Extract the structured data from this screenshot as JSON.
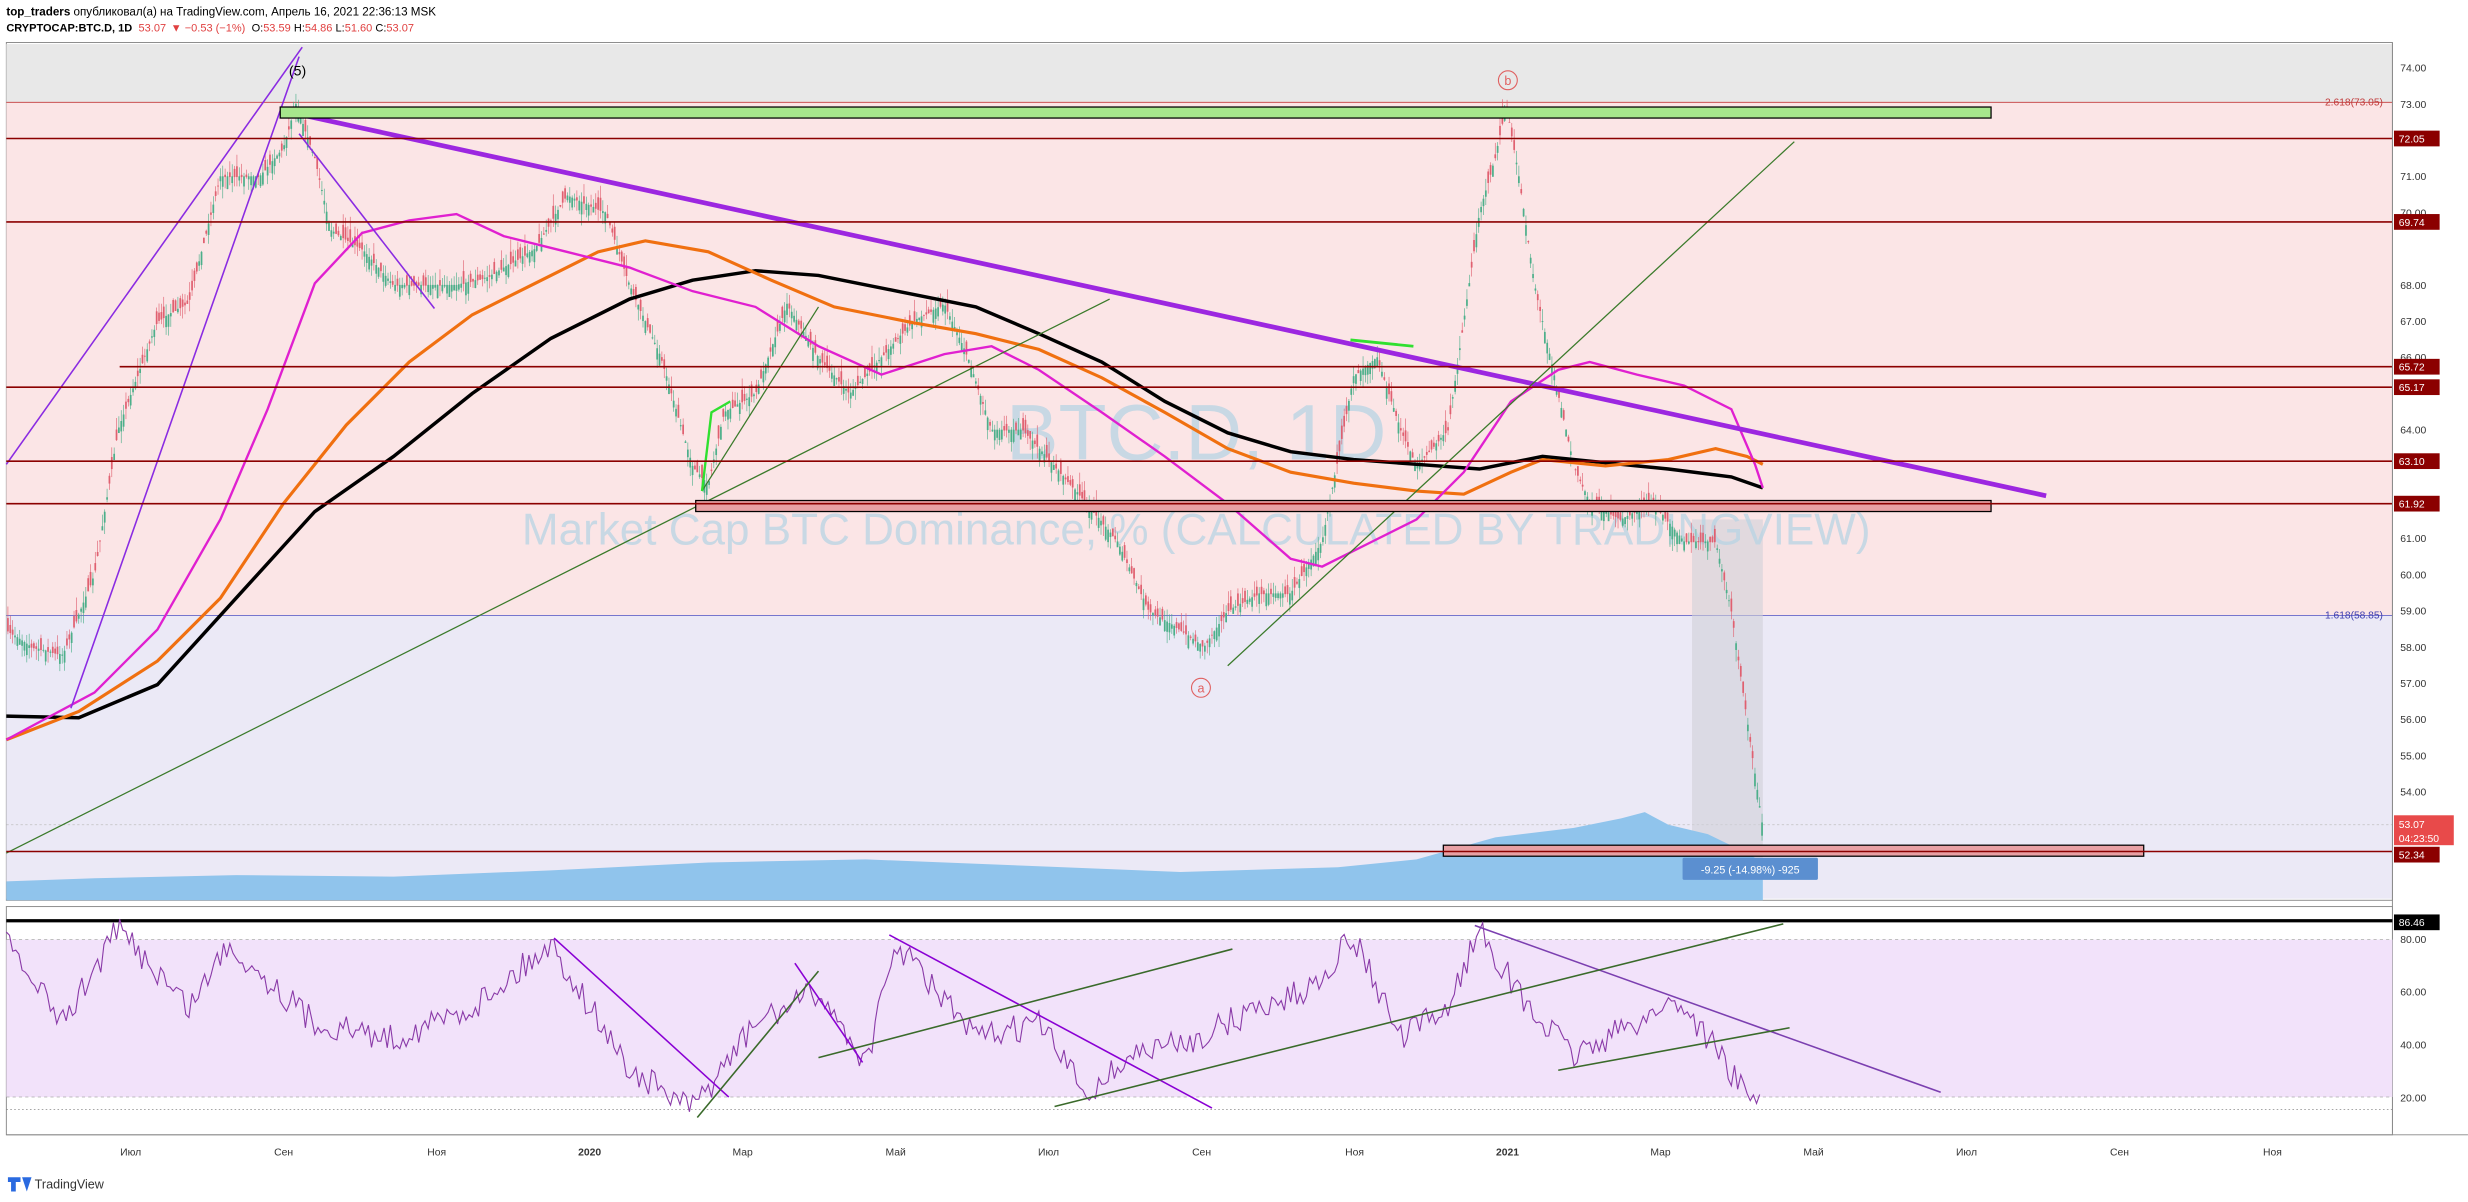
{
  "header": {
    "author": "top_traders",
    "published": " опубликовал(а) на TradingView.com, Апрель 16, 2021 22:36:13 MSK",
    "symbol": "CRYPTOCAP:BTC.D, 1D",
    "last": "53.07",
    "change": "▼ −0.53 (−1%)",
    "ohlc": [
      {
        "label": "O:",
        "value": "53.59"
      },
      {
        "label": "H:",
        "value": "54.86"
      },
      {
        "label": "L:",
        "value": "51.60"
      },
      {
        "label": "C:",
        "value": "53.07"
      }
    ]
  },
  "watermark": {
    "symbol": "BTC.D, 1D",
    "description": "Market Cap BTC Dominance, % (CALCULATED BY TRADINGVIEW)"
  },
  "price_axis": [
    "74.00",
    "73.00",
    "71.00",
    "70.00",
    "68.00",
    "67.00",
    "66.00",
    "64.00",
    "61.00",
    "60.00",
    "59.00",
    "58.00",
    "57.00",
    "56.00",
    "55.00",
    "54.00"
  ],
  "levels": [
    "72.05",
    "69.74",
    "65.72",
    "65.17",
    "63.10",
    "61.92",
    "52.34"
  ],
  "current": {
    "price": "53.07",
    "countdown": "04:23:50"
  },
  "fib": {
    "upper": "2.618(73.05)",
    "lower": "1.618(58.85)"
  },
  "annotations": {
    "wave5": "(5)",
    "wave_b": "b",
    "wave_a": "a",
    "measure": "-9.25 (-14.98%) -925"
  },
  "rsi_axis": [
    "80.00",
    "60.00",
    "40.00",
    "20.00"
  ],
  "rsi_level": "86.46",
  "time_axis": [
    "Июл",
    "Сен",
    "Ноя",
    "2020",
    "Мар",
    "Май",
    "Июл",
    "Сен",
    "Ноя",
    "2021",
    "Мар",
    "Май",
    "Июл",
    "Сен",
    "Ноя"
  ],
  "footer": {
    "brand": "TradingView"
  }
}
